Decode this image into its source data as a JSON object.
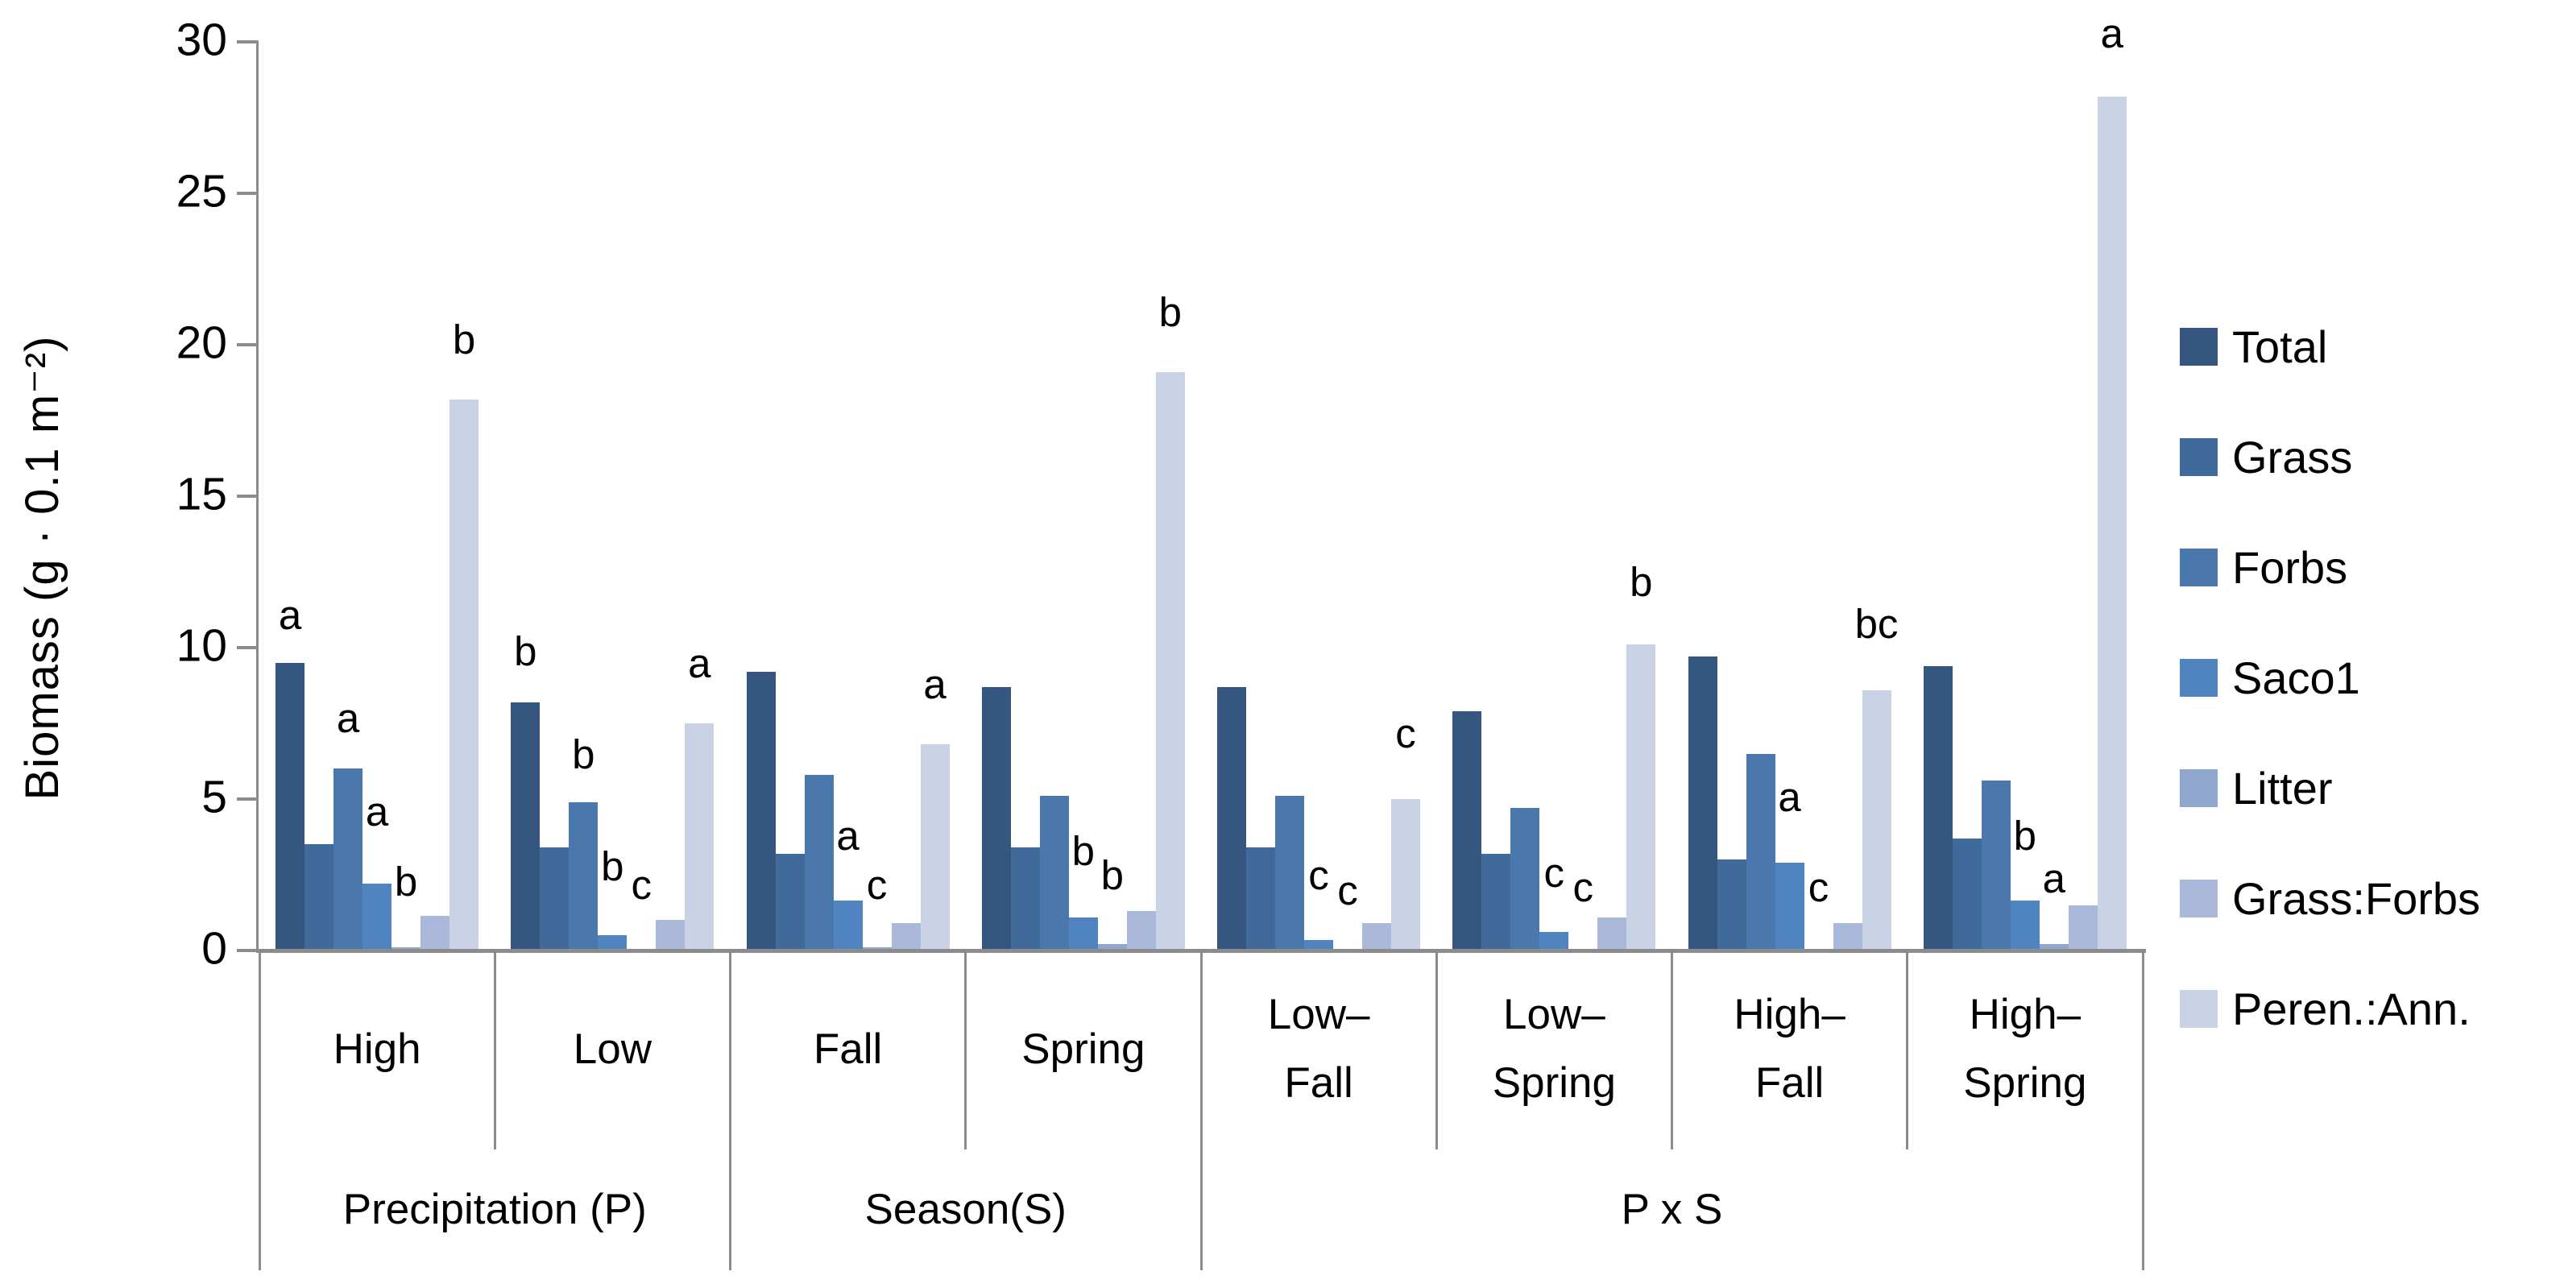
{
  "chart_data": {
    "type": "bar",
    "title": "",
    "ylabel": "Biomass (g · 0.1 m⁻²)",
    "xlabel": "",
    "ylim": [
      0,
      30
    ],
    "yticks": [
      0,
      5,
      10,
      15,
      20,
      25,
      30
    ],
    "grid": "off",
    "legend_position": "right",
    "axis_color": "#8C8C8C",
    "text_color": "#000000",
    "categories": [
      "High",
      "Low",
      "Fall",
      "Spring",
      "Low–Fall",
      "Low–Spring",
      "High–Fall",
      "High–Spring"
    ],
    "category_display": [
      [
        "High"
      ],
      [
        "Low"
      ],
      [
        "Fall"
      ],
      [
        "Spring"
      ],
      [
        "Low–",
        "Fall"
      ],
      [
        "Low–",
        "Spring"
      ],
      [
        "High–",
        "Fall"
      ],
      [
        "High–",
        "Spring"
      ]
    ],
    "groups": [
      {
        "label": "Precipitation (P)",
        "span": 2
      },
      {
        "label": "Season(S)",
        "span": 2
      },
      {
        "label": "P x S",
        "span": 4
      }
    ],
    "series": [
      {
        "name": "Total",
        "color": "#35567E",
        "values": [
          9.5,
          8.2,
          9.2,
          8.7,
          8.7,
          7.9,
          9.7,
          9.4
        ]
      },
      {
        "name": "Grass",
        "color": "#3F6A99",
        "values": [
          3.5,
          3.4,
          3.2,
          3.4,
          3.4,
          3.2,
          3.0,
          3.7
        ]
      },
      {
        "name": "Forbs",
        "color": "#4A78AD",
        "values": [
          6.0,
          4.9,
          5.8,
          5.1,
          5.1,
          4.7,
          6.5,
          5.6
        ]
      },
      {
        "name": "Saco1",
        "color": "#5084C0",
        "values": [
          2.2,
          0.5,
          1.65,
          1.1,
          0.35,
          0.6,
          2.9,
          1.65
        ]
      },
      {
        "name": "Litter",
        "color": "#8FA7CC",
        "values": [
          0.1,
          0.05,
          0.1,
          0.2,
          0.05,
          0.05,
          0.05,
          0.2
        ]
      },
      {
        "name": "Grass:Forbs",
        "color": "#AAB9D9",
        "values": [
          1.15,
          1.0,
          0.9,
          1.3,
          0.9,
          1.1,
          0.9,
          1.5
        ]
      },
      {
        "name": "Peren.:Ann.",
        "color": "#C9D3E5",
        "values": [
          18.2,
          7.5,
          6.8,
          19.1,
          5.0,
          10.1,
          8.6,
          28.2
        ]
      }
    ],
    "sig_letters": [
      {
        "cat": 0,
        "series": 0,
        "text": "a",
        "y": 10.4
      },
      {
        "cat": 0,
        "series": 2,
        "text": "a",
        "y": 7.0
      },
      {
        "cat": 0,
        "series": 3,
        "text": "a",
        "y": 3.9
      },
      {
        "cat": 0,
        "series": 4,
        "text": "b",
        "y": 1.6
      },
      {
        "cat": 0,
        "series": 6,
        "text": "b",
        "y": 19.5
      },
      {
        "cat": 1,
        "series": 0,
        "text": "b",
        "y": 9.2
      },
      {
        "cat": 1,
        "series": 2,
        "text": "b",
        "y": 5.8
      },
      {
        "cat": 1,
        "series": 3,
        "text": "b",
        "y": 2.1
      },
      {
        "cat": 1,
        "series": 4,
        "text": "c",
        "y": 1.5
      },
      {
        "cat": 1,
        "series": 6,
        "text": "a",
        "y": 8.8
      },
      {
        "cat": 2,
        "series": 3,
        "text": "a",
        "y": 3.1
      },
      {
        "cat": 2,
        "series": 4,
        "text": "c",
        "y": 1.5
      },
      {
        "cat": 2,
        "series": 6,
        "text": "a",
        "y": 8.1
      },
      {
        "cat": 3,
        "series": 3,
        "text": "b",
        "y": 2.6
      },
      {
        "cat": 3,
        "series": 4,
        "text": "b",
        "y": 1.8
      },
      {
        "cat": 3,
        "series": 6,
        "text": "b",
        "y": 20.4
      },
      {
        "cat": 4,
        "series": 3,
        "text": "c",
        "y": 1.8
      },
      {
        "cat": 4,
        "series": 4,
        "text": "c",
        "y": 1.3
      },
      {
        "cat": 4,
        "series": 6,
        "text": "c",
        "y": 6.5
      },
      {
        "cat": 5,
        "series": 3,
        "text": "c",
        "y": 1.9
      },
      {
        "cat": 5,
        "series": 4,
        "text": "c",
        "y": 1.4
      },
      {
        "cat": 5,
        "series": 6,
        "text": "b",
        "y": 11.5
      },
      {
        "cat": 6,
        "series": 3,
        "text": "a",
        "y": 4.4
      },
      {
        "cat": 6,
        "series": 4,
        "text": "c",
        "y": 1.4
      },
      {
        "cat": 6,
        "series": 6,
        "text": "bc",
        "y": 10.1
      },
      {
        "cat": 7,
        "series": 3,
        "text": "b",
        "y": 3.1
      },
      {
        "cat": 7,
        "series": 4,
        "text": "a",
        "y": 1.7
      },
      {
        "cat": 7,
        "series": 6,
        "text": "a",
        "y": 29.6
      }
    ]
  }
}
